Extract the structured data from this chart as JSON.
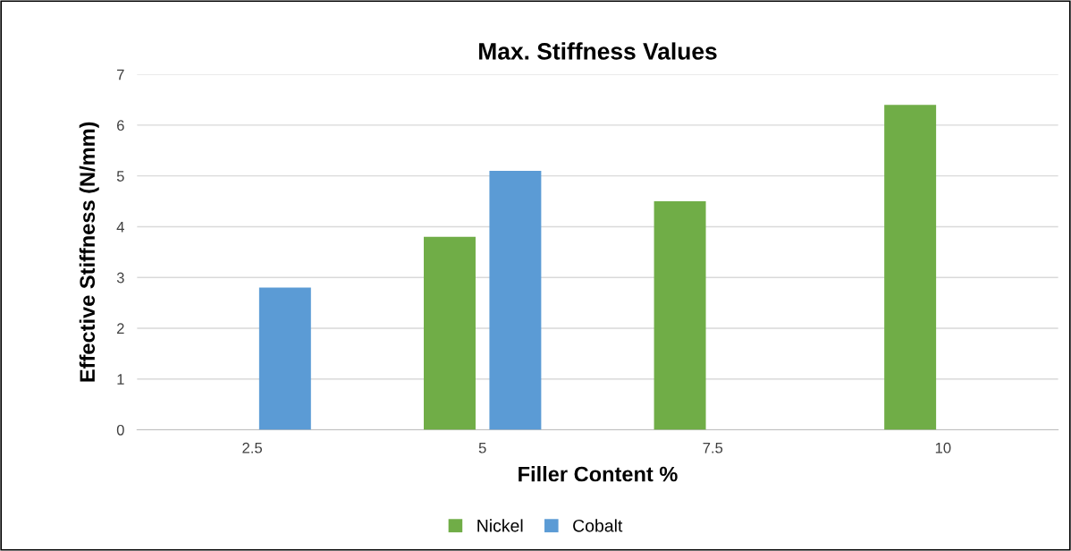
{
  "chart_data": {
    "type": "bar",
    "title": "Max. Stiffness Values",
    "xlabel": "Filler Content %",
    "ylabel": "Effective Stiffness (N/mm)",
    "categories": [
      "2.5",
      "5",
      "7.5",
      "10"
    ],
    "series": [
      {
        "name": "Nickel",
        "color": "#70ad47",
        "values": [
          null,
          3.8,
          4.5,
          6.4
        ]
      },
      {
        "name": "Cobalt",
        "color": "#5b9bd5",
        "values": [
          2.8,
          5.1,
          null,
          null
        ]
      }
    ],
    "ylim": [
      0,
      7
    ],
    "yticks": [
      0,
      1,
      2,
      3,
      4,
      5,
      6,
      7
    ],
    "grid": "y",
    "legend": "bottom"
  }
}
